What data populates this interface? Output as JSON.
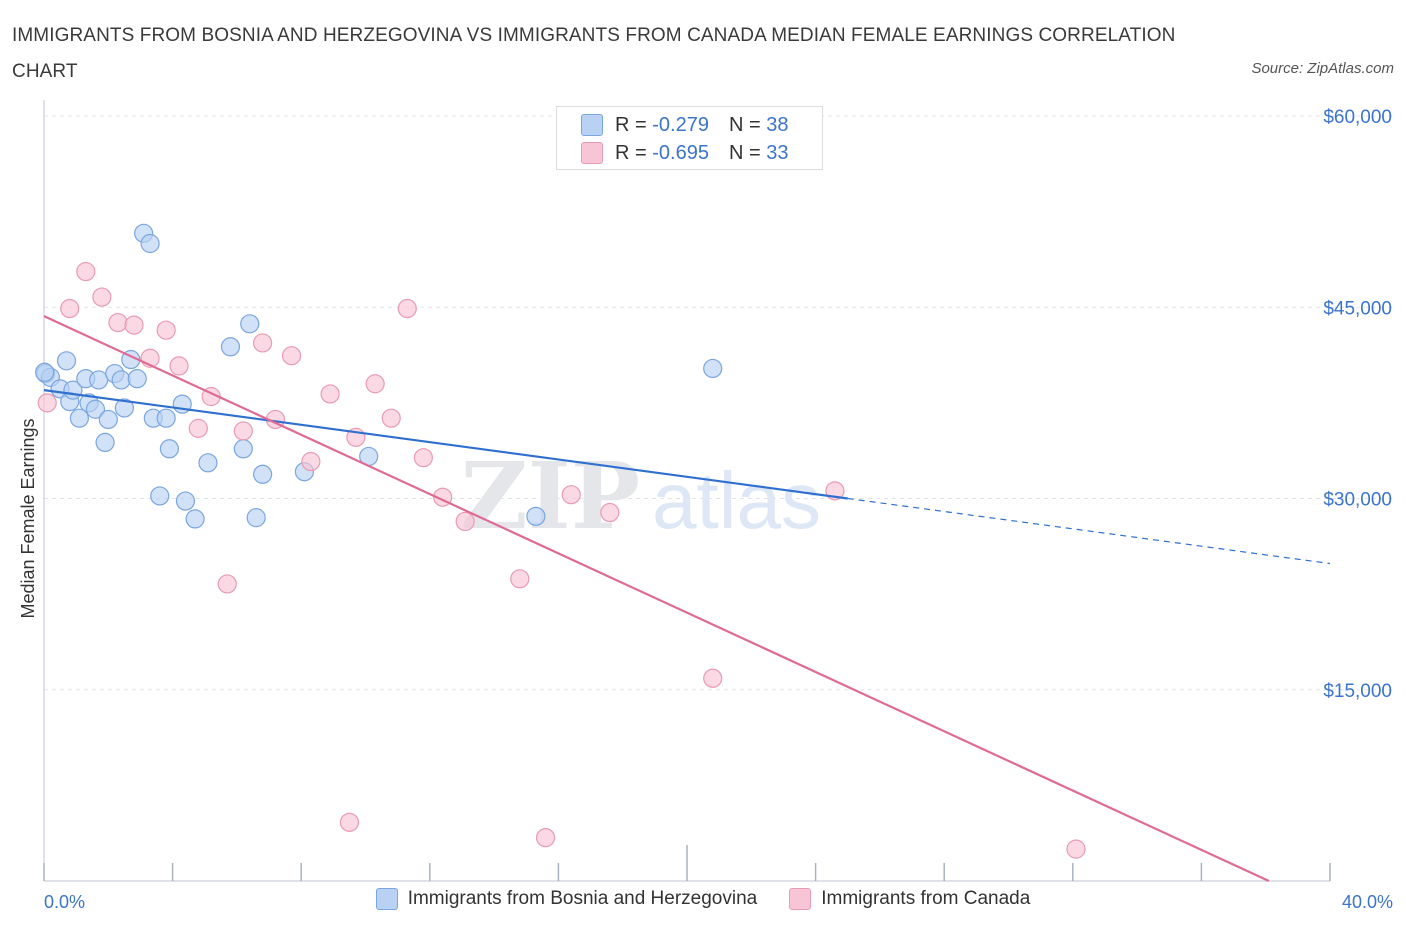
{
  "title": "IMMIGRANTS FROM BOSNIA AND HERZEGOVINA VS IMMIGRANTS FROM CANADA MEDIAN FEMALE EARNINGS CORRELATION CHART",
  "source": "Source: ZipAtlas.com",
  "watermark": {
    "zip": "ZIP",
    "atlas": "atlas"
  },
  "legend_top": [
    {
      "r_label": "R =",
      "r_value": "-0.279",
      "n_label": "N =",
      "n_value": "38"
    },
    {
      "r_label": "R =",
      "r_value": "-0.695",
      "n_label": "N =",
      "n_value": "33"
    }
  ],
  "colors": {
    "blue_fill": "#b9d1f3",
    "blue_stroke": "#7aa6e0",
    "blue_line": "#2e6fcf",
    "pink_fill": "#f7c5d5",
    "pink_stroke": "#e99ab4",
    "pink_line": "#e06a94",
    "axis_text": "#3b74cc",
    "grid": "#dfe3ea"
  },
  "chart_data": {
    "type": "scatter",
    "title": "IMMIGRANTS FROM BOSNIA AND HERZEGOVINA VS IMMIGRANTS FROM CANADA MEDIAN FEMALE EARNINGS CORRELATION CHART",
    "xlabel": "",
    "ylabel": "Median Female Earnings",
    "xlim": [
      0,
      40
    ],
    "ylim": [
      0,
      60000
    ],
    "x_tick_labels": [
      "0.0%",
      "40.0%"
    ],
    "y_ticks": [
      15000,
      30000,
      45000,
      60000
    ],
    "y_tick_labels": [
      "$15,000",
      "$30,000",
      "$45,000",
      "$60,000"
    ],
    "grid": true,
    "legend_position": "top-center",
    "series": [
      {
        "name": "Immigrants from Bosnia and Herzegovina",
        "R": -0.279,
        "N": 38,
        "points": [
          [
            0.05,
            39800
          ],
          [
            0.2,
            39500
          ],
          [
            0.5,
            38600
          ],
          [
            0.7,
            40800
          ],
          [
            0.8,
            37600
          ],
          [
            0.9,
            38500
          ],
          [
            1.1,
            36300
          ],
          [
            1.3,
            39400
          ],
          [
            1.4,
            37500
          ],
          [
            1.6,
            37000
          ],
          [
            1.7,
            39300
          ],
          [
            1.9,
            34400
          ],
          [
            2.0,
            36200
          ],
          [
            2.2,
            39800
          ],
          [
            2.4,
            39300
          ],
          [
            2.5,
            37100
          ],
          [
            2.7,
            40900
          ],
          [
            2.9,
            39400
          ],
          [
            3.1,
            50800
          ],
          [
            3.3,
            50000
          ],
          [
            3.4,
            36300
          ],
          [
            3.6,
            30200
          ],
          [
            3.8,
            36300
          ],
          [
            3.9,
            33900
          ],
          [
            4.3,
            37400
          ],
          [
            4.4,
            29800
          ],
          [
            4.7,
            28400
          ],
          [
            5.1,
            32800
          ],
          [
            5.8,
            41900
          ],
          [
            6.2,
            33900
          ],
          [
            6.4,
            43700
          ],
          [
            6.6,
            28500
          ],
          [
            6.8,
            31900
          ],
          [
            8.1,
            32100
          ],
          [
            10.1,
            33300
          ],
          [
            15.3,
            28600
          ],
          [
            20.8,
            40200
          ],
          [
            0.02,
            39900
          ]
        ],
        "trend": {
          "x0": 0,
          "y0": 38500,
          "x1": 25,
          "y1": 30000,
          "dash_to_x": 40,
          "dash_to_y": 24900
        }
      },
      {
        "name": "Immigrants from Canada",
        "R": -0.695,
        "N": 33,
        "points": [
          [
            0.1,
            37500
          ],
          [
            0.8,
            44900
          ],
          [
            1.3,
            47800
          ],
          [
            1.8,
            45800
          ],
          [
            2.3,
            43800
          ],
          [
            2.8,
            43600
          ],
          [
            3.3,
            41000
          ],
          [
            3.8,
            43200
          ],
          [
            4.2,
            40400
          ],
          [
            4.8,
            35500
          ],
          [
            5.2,
            38000
          ],
          [
            5.7,
            23300
          ],
          [
            6.2,
            35300
          ],
          [
            6.8,
            42200
          ],
          [
            7.2,
            36200
          ],
          [
            7.7,
            41200
          ],
          [
            8.3,
            32900
          ],
          [
            8.9,
            38200
          ],
          [
            9.5,
            4600
          ],
          [
            9.7,
            34800
          ],
          [
            10.3,
            39000
          ],
          [
            10.8,
            36300
          ],
          [
            11.3,
            44900
          ],
          [
            11.8,
            33200
          ],
          [
            12.4,
            30100
          ],
          [
            13.1,
            28200
          ],
          [
            14.8,
            23700
          ],
          [
            15.6,
            3400
          ],
          [
            16.4,
            30300
          ],
          [
            17.6,
            28900
          ],
          [
            20.8,
            15900
          ],
          [
            24.6,
            30600
          ],
          [
            32.1,
            2500
          ]
        ],
        "trend": {
          "x0": 0,
          "y0": 44300,
          "x1": 38.1,
          "y1": 0
        }
      }
    ]
  },
  "bottom_legend": [
    {
      "label": "Immigrants from Bosnia and Herzegovina"
    },
    {
      "label": "Immigrants from Canada"
    }
  ]
}
